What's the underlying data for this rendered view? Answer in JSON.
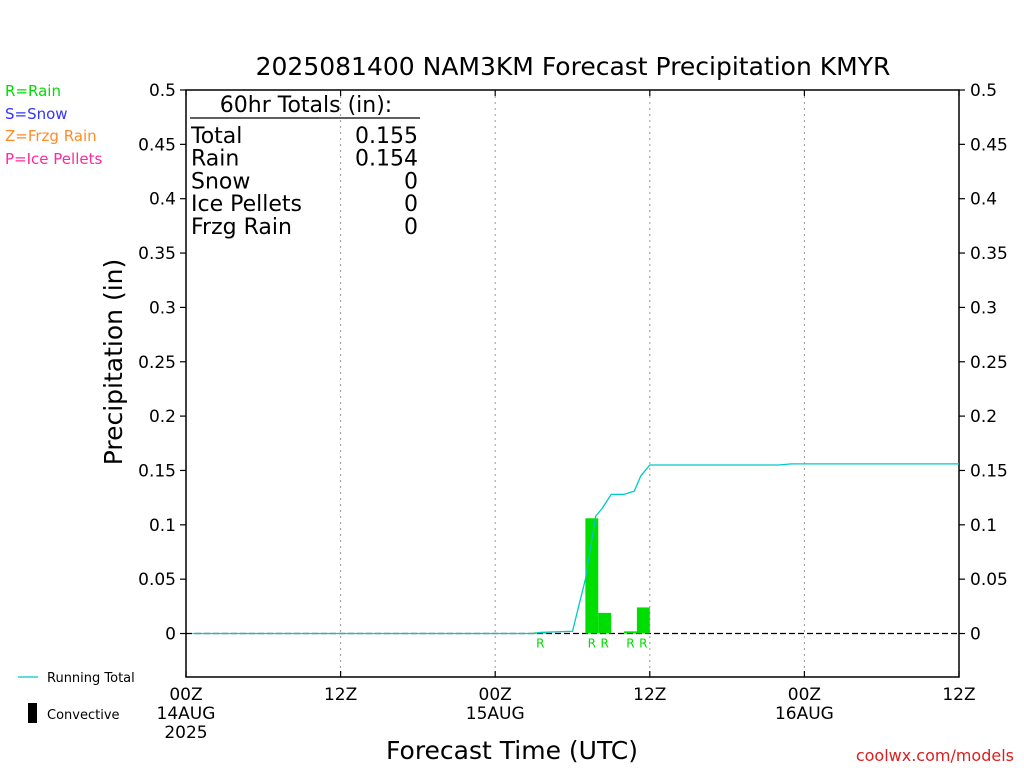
{
  "chart_data": {
    "type": "bar",
    "title": "2025081400 NAM3KM Forecast Precipitation KMYR",
    "ylabel": "Precipitation (in)",
    "xlabel": "Forecast Time (UTC)",
    "ylim": [
      -0.04,
      0.5
    ],
    "y_ticks": [
      "0.5",
      "0.45",
      "0.4",
      "0.35",
      "0.3",
      "0.25",
      "0.2",
      "0.15",
      "0.1",
      "0.05",
      "0"
    ],
    "y_tick_values": [
      0.5,
      0.45,
      0.4,
      0.35,
      0.3,
      0.25,
      0.2,
      0.15,
      0.1,
      0.05,
      0
    ],
    "xlim_hours": [
      0,
      60
    ],
    "x_ticks": [
      {
        "hour": 0,
        "label": "00Z",
        "date": "14AUG",
        "year": "2025"
      },
      {
        "hour": 12,
        "label": "12Z",
        "date": "",
        "year": ""
      },
      {
        "hour": 24,
        "label": "00Z",
        "date": "15AUG",
        "year": ""
      },
      {
        "hour": 36,
        "label": "12Z",
        "date": "",
        "year": ""
      },
      {
        "hour": 48,
        "label": "00Z",
        "date": "16AUG",
        "year": ""
      },
      {
        "hour": 60,
        "label": "12Z",
        "date": "",
        "year": ""
      }
    ],
    "grid": "vertical dotted at 12Z/00Z",
    "bars": [
      {
        "hour": 27.5,
        "value": 0.001,
        "type": "R"
      },
      {
        "hour": 31.5,
        "value": 0.106,
        "type": "R"
      },
      {
        "hour": 32.5,
        "value": 0.019,
        "type": "R"
      },
      {
        "hour": 34.5,
        "value": 0.002,
        "type": "R"
      },
      {
        "hour": 35.5,
        "value": 0.024,
        "type": "R"
      }
    ],
    "series": [
      {
        "name": "Running Total",
        "color": "#00c8c8",
        "points": [
          [
            0.5,
            0
          ],
          [
            27,
            0
          ],
          [
            27.5,
            0.001
          ],
          [
            30,
            0.002
          ],
          [
            31,
            0.05
          ],
          [
            31.8,
            0.108
          ],
          [
            32.3,
            0.115
          ],
          [
            33,
            0.128
          ],
          [
            34,
            0.128
          ],
          [
            34.8,
            0.131
          ],
          [
            35.3,
            0.145
          ],
          [
            36,
            0.155
          ],
          [
            45,
            0.155
          ],
          [
            46,
            0.155
          ],
          [
            47,
            0.156
          ],
          [
            60,
            0.156
          ]
        ]
      }
    ]
  },
  "legend": {
    "rain": "R=Rain",
    "snow": "S=Snow",
    "frzg": "Z=Frzg Rain",
    "ice": "P=Ice Pellets",
    "running_total": "Running Total",
    "convective": "Convective"
  },
  "totals": {
    "header": "60hr Totals (in):",
    "rows": [
      {
        "label": "Total",
        "value": "0.155"
      },
      {
        "label": "Rain",
        "value": "0.154"
      },
      {
        "label": "Snow",
        "value": "0"
      },
      {
        "label": "Ice Pellets",
        "value": "0"
      },
      {
        "label": "Frzg Rain",
        "value": "0"
      }
    ]
  },
  "credit": "coolwx.com/models",
  "colors": {
    "rain": "#00dd00",
    "snow": "#3333ff",
    "frzg": "#ff8c28",
    "ice": "#ff28a0",
    "running_total": "#00c8c8",
    "credit": "#dc1e1e"
  }
}
